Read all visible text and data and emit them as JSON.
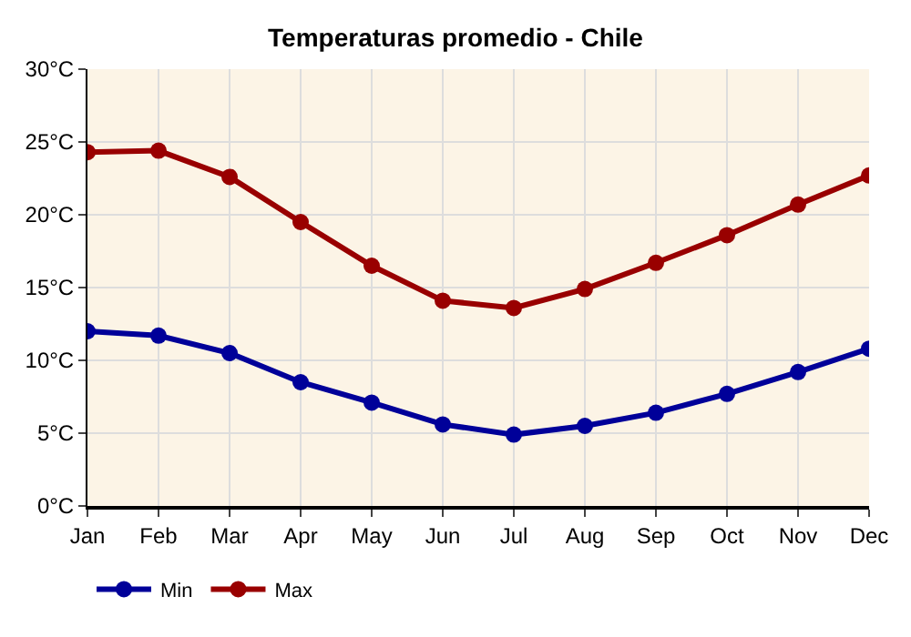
{
  "chart_data": {
    "type": "line",
    "title": "Temperaturas promedio - Chile",
    "categories": [
      "Jan",
      "Feb",
      "Mar",
      "Apr",
      "May",
      "Jun",
      "Jul",
      "Aug",
      "Sep",
      "Oct",
      "Nov",
      "Dec"
    ],
    "series": [
      {
        "name": "Min",
        "color": "#000099",
        "values": [
          12.0,
          11.7,
          10.5,
          8.5,
          7.1,
          5.6,
          4.9,
          5.5,
          6.4,
          7.7,
          9.2,
          10.8
        ]
      },
      {
        "name": "Max",
        "color": "#990000",
        "values": [
          24.3,
          24.4,
          22.6,
          19.5,
          16.5,
          14.1,
          13.6,
          14.9,
          16.7,
          18.6,
          20.7,
          22.7
        ]
      }
    ],
    "ylim": [
      0,
      30
    ],
    "yticks": [
      {
        "value": 0,
        "label": "0°C"
      },
      {
        "value": 5,
        "label": "5°C"
      },
      {
        "value": 10,
        "label": "10°C"
      },
      {
        "value": 15,
        "label": "15°C"
      },
      {
        "value": 20,
        "label": "20°C"
      },
      {
        "value": 25,
        "label": "25°C"
      },
      {
        "value": 30,
        "label": "30°C"
      }
    ],
    "grid": true,
    "legend": "bottom left",
    "marker": "circle",
    "line_style": "solid"
  }
}
